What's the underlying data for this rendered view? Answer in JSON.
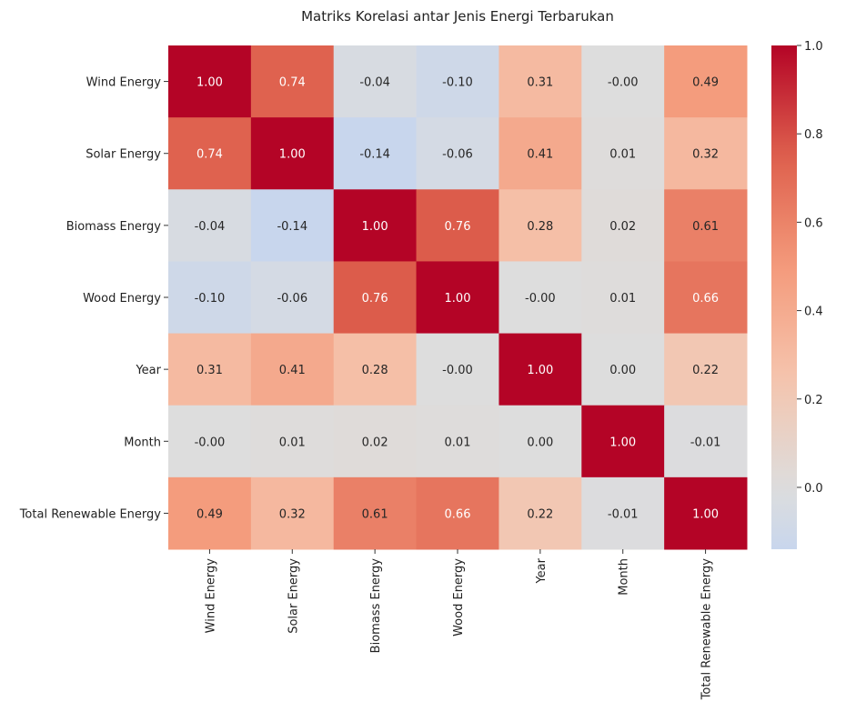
{
  "chart_data": {
    "type": "heatmap",
    "title": "Matriks Korelasi antar Jenis Energi Terbarukan",
    "xlabel": "",
    "ylabel": "",
    "categories": [
      "Wind Energy",
      "Solar Energy",
      "Biomass Energy",
      "Wood Energy",
      "Year",
      "Month",
      "Total Renewable Energy"
    ],
    "values": [
      [
        1.0,
        0.74,
        -0.04,
        -0.1,
        0.31,
        -0.0,
        0.49
      ],
      [
        0.74,
        1.0,
        -0.14,
        -0.06,
        0.41,
        0.01,
        0.32
      ],
      [
        -0.04,
        -0.14,
        1.0,
        0.76,
        0.28,
        0.02,
        0.61
      ],
      [
        -0.1,
        -0.06,
        0.76,
        1.0,
        -0.0,
        0.01,
        0.66
      ],
      [
        0.31,
        0.41,
        0.28,
        -0.0,
        1.0,
        0.0,
        0.22
      ],
      [
        -0.0,
        0.01,
        0.02,
        0.01,
        0.0,
        1.0,
        -0.01
      ],
      [
        0.49,
        0.32,
        0.61,
        0.66,
        0.22,
        -0.01,
        1.0
      ]
    ],
    "annotation_format": "2 decimals",
    "colormap": "coolwarm",
    "color_center": 0.0,
    "colorbar": {
      "range": [
        -0.14,
        1.0
      ],
      "ticks": [
        1.0,
        0.8,
        0.6,
        0.4,
        0.2,
        0.0
      ],
      "tick_labels": [
        "1.0",
        "0.8",
        "0.6",
        "0.4",
        "0.2",
        "0.0"
      ]
    },
    "colors": {
      "low": "#3b4cc0",
      "mid": "#dddddd",
      "high": "#b40426"
    }
  }
}
